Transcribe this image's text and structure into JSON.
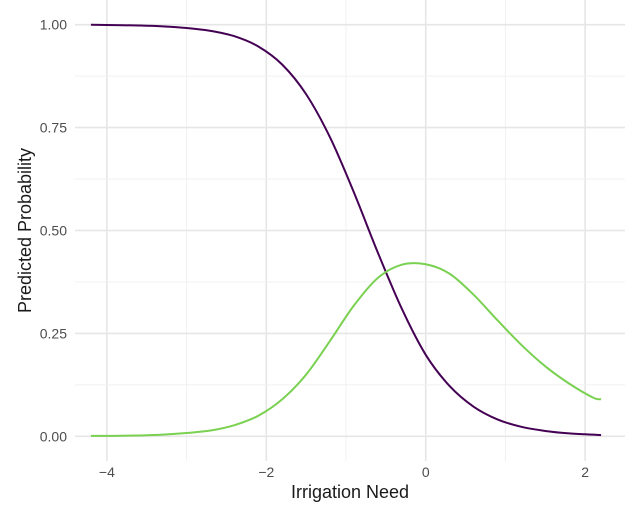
{
  "chart_data": {
    "type": "line",
    "title": "",
    "xlabel": "Irrigation Need",
    "ylabel": "Predicted Probability",
    "xlim": [
      -4.4,
      2.5
    ],
    "ylim": [
      -0.06,
      1.06
    ],
    "x_ticks": [
      -4,
      -2,
      0,
      2
    ],
    "x_tick_labels": [
      "−4",
      "−2",
      "0",
      "2"
    ],
    "y_ticks": [
      0,
      0.25,
      0.5,
      0.75,
      1
    ],
    "y_tick_labels": [
      "0.00",
      "0.25",
      "0.50",
      "0.75",
      "1.00"
    ],
    "grid": true,
    "legend": "none",
    "x": [
      -4.2,
      -3.9,
      -3.6,
      -3.3,
      -3.0,
      -2.7,
      -2.4,
      -2.1,
      -1.8,
      -1.5,
      -1.2,
      -0.9,
      -0.6,
      -0.3,
      0.0,
      0.3,
      0.6,
      0.9,
      1.2,
      1.5,
      1.8,
      2.1,
      2.2
    ],
    "series": [
      {
        "color": "#440154",
        "values": [
          1.0,
          0.999,
          0.998,
          0.996,
          0.992,
          0.985,
          0.972,
          0.947,
          0.903,
          0.831,
          0.726,
          0.592,
          0.446,
          0.31,
          0.198,
          0.122,
          0.072,
          0.041,
          0.023,
          0.013,
          0.007,
          0.004,
          0.003
        ]
      },
      {
        "color": "#7AD151",
        "values": [
          0.001,
          0.001,
          0.002,
          0.004,
          0.008,
          0.014,
          0.027,
          0.05,
          0.09,
          0.15,
          0.232,
          0.318,
          0.385,
          0.417,
          0.418,
          0.395,
          0.344,
          0.282,
          0.222,
          0.17,
          0.128,
          0.094,
          0.09
        ]
      }
    ]
  }
}
